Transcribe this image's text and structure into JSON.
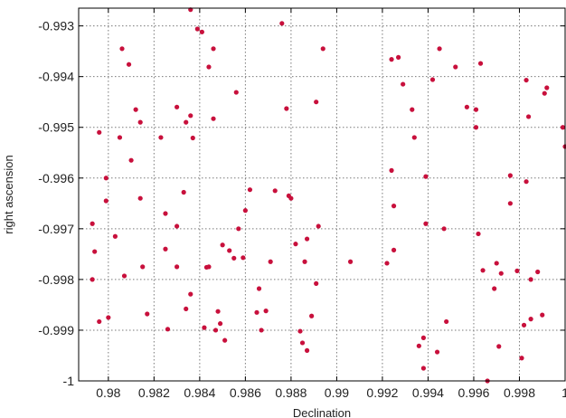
{
  "chart_data": {
    "type": "scatter",
    "xlabel": "Declination",
    "ylabel": "right ascension",
    "xlim": [
      0.9787,
      1.0
    ],
    "ylim": [
      -1.0,
      -0.99265
    ],
    "xticks": [
      0.98,
      0.982,
      0.984,
      0.986,
      0.988,
      0.99,
      0.992,
      0.994,
      0.996,
      0.998,
      1.0
    ],
    "xtick_labels": [
      "0.98",
      "0.982",
      "0.984",
      "0.986",
      "0.988",
      "0.99",
      "0.992",
      "0.994",
      "0.996",
      "0.998",
      "1"
    ],
    "yticks": [
      -0.993,
      -0.994,
      -0.995,
      -0.996,
      -0.997,
      -0.998,
      -0.999,
      -1.0
    ],
    "ytick_labels": [
      "-0.993",
      "-0.994",
      "-0.995",
      "-0.996",
      "-0.997",
      "-0.998",
      "-0.999",
      "-1"
    ],
    "grid": true,
    "marker_color": "#c8103c",
    "points": [
      [
        0.9793,
        -0.9969
      ],
      [
        0.9794,
        -0.99745
      ],
      [
        0.9793,
        -0.998
      ],
      [
        0.9796,
        -0.9951
      ],
      [
        0.9796,
        -0.99883
      ],
      [
        0.9799,
        -0.99645
      ],
      [
        0.9799,
        -0.996
      ],
      [
        0.98,
        -0.99875
      ],
      [
        0.9803,
        -0.99715
      ],
      [
        0.9805,
        -0.9952
      ],
      [
        0.9806,
        -0.99345
      ],
      [
        0.9807,
        -0.99793
      ],
      [
        0.9809,
        -0.99376
      ],
      [
        0.981,
        -0.99565
      ],
      [
        0.9812,
        -0.99465
      ],
      [
        0.9814,
        -0.9964
      ],
      [
        0.9814,
        -0.9949
      ],
      [
        0.9815,
        -0.99775
      ],
      [
        0.9817,
        -0.99868
      ],
      [
        0.9823,
        -0.9952
      ],
      [
        0.9825,
        -0.9967
      ],
      [
        0.9825,
        -0.9974
      ],
      [
        0.9826,
        -0.99898
      ],
      [
        0.983,
        -0.9946
      ],
      [
        0.983,
        -0.99695
      ],
      [
        0.983,
        -0.99775
      ],
      [
        0.9833,
        -0.99628
      ],
      [
        0.9834,
        -0.9949
      ],
      [
        0.9834,
        -0.99858
      ],
      [
        0.9836,
        -0.99829
      ],
      [
        0.9836,
        -0.99268
      ],
      [
        0.9836,
        -0.99477
      ],
      [
        0.9837,
        -0.99521
      ],
      [
        0.9839,
        -0.99306
      ],
      [
        0.9841,
        -0.99312
      ],
      [
        0.9842,
        -0.99895
      ],
      [
        0.9843,
        -0.99776
      ],
      [
        0.9844,
        -0.99381
      ],
      [
        0.9844,
        -0.99775
      ],
      [
        0.9846,
        -0.99345
      ],
      [
        0.9846,
        -0.99483
      ],
      [
        0.9847,
        -0.999
      ],
      [
        0.9848,
        -0.99863
      ],
      [
        0.9849,
        -0.99887
      ],
      [
        0.985,
        -0.99732
      ],
      [
        0.9851,
        -0.9992
      ],
      [
        0.9853,
        -0.99743
      ],
      [
        0.9855,
        -0.99758
      ],
      [
        0.9856,
        -0.99431
      ],
      [
        0.9857,
        -0.997
      ],
      [
        0.9859,
        -0.99757
      ],
      [
        0.986,
        -0.99664
      ],
      [
        0.9862,
        -0.99623
      ],
      [
        0.9865,
        -0.99865
      ],
      [
        0.9867,
        -0.999
      ],
      [
        0.9866,
        -0.99818
      ],
      [
        0.9869,
        -0.99862
      ],
      [
        0.9871,
        -0.99765
      ],
      [
        0.9873,
        -0.99625
      ],
      [
        0.9876,
        -0.99295
      ],
      [
        0.9878,
        -0.99463
      ],
      [
        0.9879,
        -0.99635
      ],
      [
        0.988,
        -0.9964
      ],
      [
        0.9882,
        -0.9973
      ],
      [
        0.9884,
        -0.99902
      ],
      [
        0.9885,
        -0.99925
      ],
      [
        0.9886,
        -0.99765
      ],
      [
        0.9887,
        -0.9972
      ],
      [
        0.9887,
        -0.9994
      ],
      [
        0.9889,
        -0.99872
      ],
      [
        0.9891,
        -0.9945
      ],
      [
        0.9891,
        -0.99808
      ],
      [
        0.9892,
        -0.99695
      ],
      [
        0.9894,
        -0.99345
      ],
      [
        0.9906,
        -0.99765
      ],
      [
        0.9922,
        -0.99768
      ],
      [
        0.9924,
        -0.99366
      ],
      [
        0.9924,
        -0.99585
      ],
      [
        0.9925,
        -0.99655
      ],
      [
        0.9925,
        -0.99742
      ],
      [
        0.9927,
        -0.99362
      ],
      [
        0.9929,
        -0.99415
      ],
      [
        0.9933,
        -0.99465
      ],
      [
        0.9934,
        -0.9952
      ],
      [
        0.9936,
        -0.99931
      ],
      [
        0.9938,
        -0.99975
      ],
      [
        0.9938,
        -0.99915
      ],
      [
        0.9939,
        -0.99597
      ],
      [
        0.9939,
        -0.9969
      ],
      [
        0.9942,
        -0.99406
      ],
      [
        0.9944,
        -0.99943
      ],
      [
        0.9945,
        -0.99345
      ],
      [
        0.9947,
        -0.997
      ],
      [
        0.9948,
        -0.99883
      ],
      [
        0.9952,
        -0.99381
      ],
      [
        0.9957,
        -0.9946
      ],
      [
        0.9961,
        -0.99465
      ],
      [
        0.9961,
        -0.995
      ],
      [
        0.9962,
        -0.9971
      ],
      [
        0.9963,
        -0.99374
      ],
      [
        0.9964,
        -0.99782
      ],
      [
        0.9966,
        -1.0
      ],
      [
        0.9969,
        -0.99818
      ],
      [
        0.997,
        -0.99768
      ],
      [
        0.9971,
        -0.99932
      ],
      [
        0.9972,
        -0.99788
      ],
      [
        0.9976,
        -0.99595
      ],
      [
        0.9976,
        -0.9965
      ],
      [
        0.9979,
        -0.99783
      ],
      [
        0.9981,
        -0.99955
      ],
      [
        0.9982,
        -0.9989
      ],
      [
        0.9983,
        -0.99407
      ],
      [
        0.9983,
        -0.99607
      ],
      [
        0.9984,
        -0.99479
      ],
      [
        0.9985,
        -0.998
      ],
      [
        0.9985,
        -0.99878
      ],
      [
        0.9988,
        -0.99785
      ],
      [
        0.999,
        -0.9987
      ],
      [
        0.9991,
        -0.99433
      ],
      [
        0.9992,
        -0.99422
      ],
      [
        0.9999,
        -0.995
      ],
      [
        1.0,
        -0.99538
      ]
    ]
  }
}
